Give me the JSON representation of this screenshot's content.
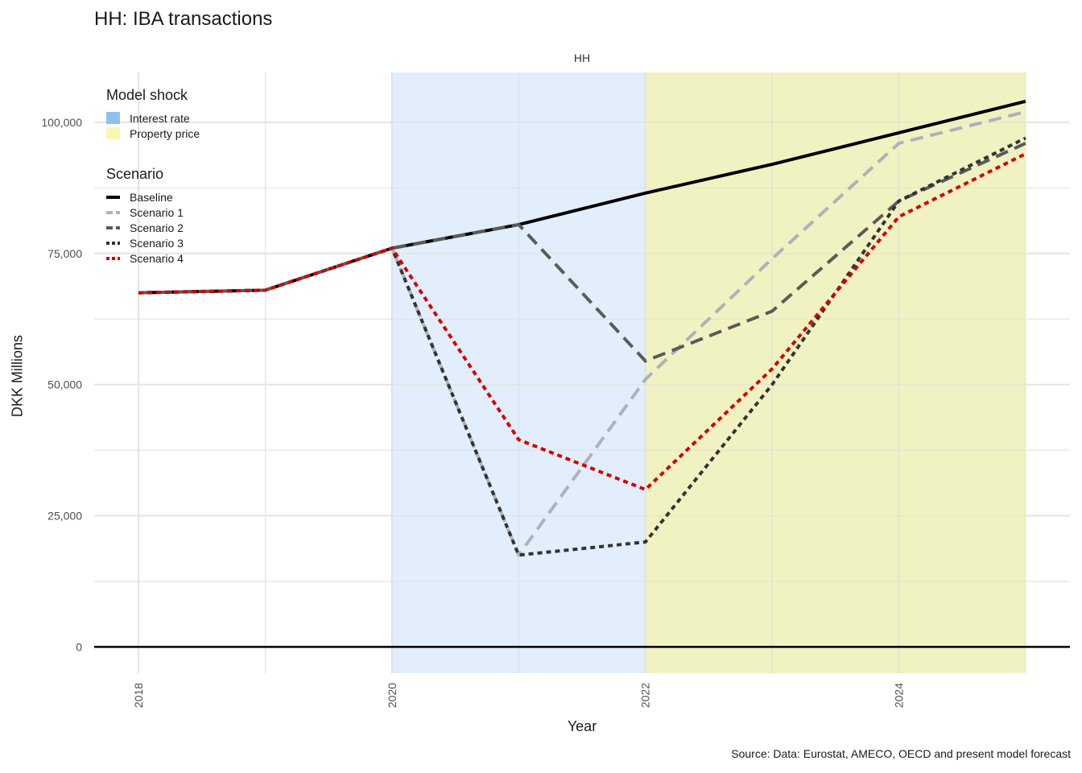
{
  "chart_data": {
    "type": "line",
    "title": "HH: IBA transactions",
    "panel": "HH",
    "xlabel": "Year",
    "ylabel": "DKK Millions",
    "caption": "Source: Data: Eurostat, AMECO, OECD and present model forecast",
    "x": [
      2018,
      2019,
      2020,
      2021,
      2022,
      2023,
      2024,
      2025
    ],
    "xlim": [
      2017.65,
      2025.35
    ],
    "ylim": [
      -5000,
      109500
    ],
    "x_ticks": [
      "2018",
      "2020",
      "2022",
      "2024"
    ],
    "y_ticks": [
      "0",
      "25,000",
      "50,000",
      "75,000",
      "100,000"
    ],
    "shock_bands": [
      {
        "name": "Interest rate",
        "x_start": 2020,
        "x_end": 2022,
        "color": "#dceafa"
      },
      {
        "name": "Property price",
        "x_start": 2022,
        "x_end": 2025,
        "color": "#eeefb3"
      }
    ],
    "series": [
      {
        "name": "Baseline",
        "color": "#000000",
        "dash": "solid",
        "values": [
          67500,
          68000,
          76000,
          80500,
          86500,
          92000,
          98000,
          104000
        ]
      },
      {
        "name": "Scenario 1",
        "color": "#afb1b9",
        "dash": "longdash",
        "values": [
          67500,
          68000,
          76000,
          17500,
          51000,
          74000,
          96000,
          102000
        ]
      },
      {
        "name": "Scenario 2",
        "color": "#5a5a5a",
        "dash": "longdash",
        "values": [
          67500,
          68000,
          76000,
          80500,
          54500,
          64000,
          85000,
          96000
        ]
      },
      {
        "name": "Scenario 3",
        "color": "#333333",
        "dash": "dotted",
        "values": [
          67500,
          68000,
          76000,
          17500,
          20000,
          50000,
          85000,
          97000
        ]
      },
      {
        "name": "Scenario 4",
        "color": "#d40000",
        "dash": "dotted",
        "values": [
          67500,
          68000,
          76000,
          39500,
          30000,
          53000,
          82000,
          94000
        ]
      }
    ],
    "legend_shock_title": "Model shock",
    "legend_scenario_title": "Scenario",
    "legend_shock": [
      {
        "label": "Interest rate",
        "color": "#8fc1ee"
      },
      {
        "label": "Property price",
        "color": "#f7f7b2"
      }
    ],
    "legend_placement": "top-left",
    "grid": true
  }
}
